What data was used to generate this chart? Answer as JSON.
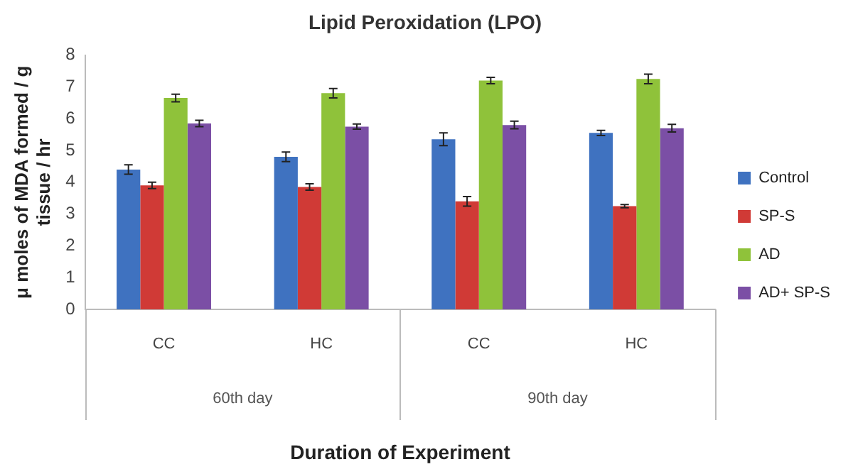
{
  "chart_data": {
    "type": "bar",
    "title": "Lipid Peroxidation (LPO)",
    "xlabel": "Duration of Experiment",
    "ylabel": "μ moles of MDA formed / g tissue / hr",
    "categories": [
      "CC",
      "HC",
      "CC",
      "HC"
    ],
    "annotations": [
      "60th day",
      "90th day"
    ],
    "series": [
      {
        "name": "Control",
        "color": "#3f72c0",
        "values": [
          4.4,
          4.8,
          5.35,
          5.55
        ],
        "errors": [
          0.15,
          0.15,
          0.2,
          0.08
        ]
      },
      {
        "name": "SP-S",
        "color": "#d03a36",
        "values": [
          3.9,
          3.85,
          3.4,
          3.25
        ],
        "errors": [
          0.1,
          0.1,
          0.15,
          0.05
        ]
      },
      {
        "name": "AD",
        "color": "#8fc23a",
        "values": [
          6.65,
          6.8,
          7.2,
          7.25
        ],
        "errors": [
          0.12,
          0.15,
          0.1,
          0.15
        ]
      },
      {
        "name": "AD+ SP-S",
        "color": "#7b4fa5",
        "values": [
          5.85,
          5.75,
          5.8,
          5.7
        ],
        "errors": [
          0.1,
          0.08,
          0.12,
          0.12
        ]
      }
    ],
    "ylim": [
      0,
      8
    ],
    "yticks": [
      0,
      1,
      2,
      3,
      4,
      5,
      6,
      7,
      8
    ],
    "grid": false,
    "legend": "right"
  }
}
